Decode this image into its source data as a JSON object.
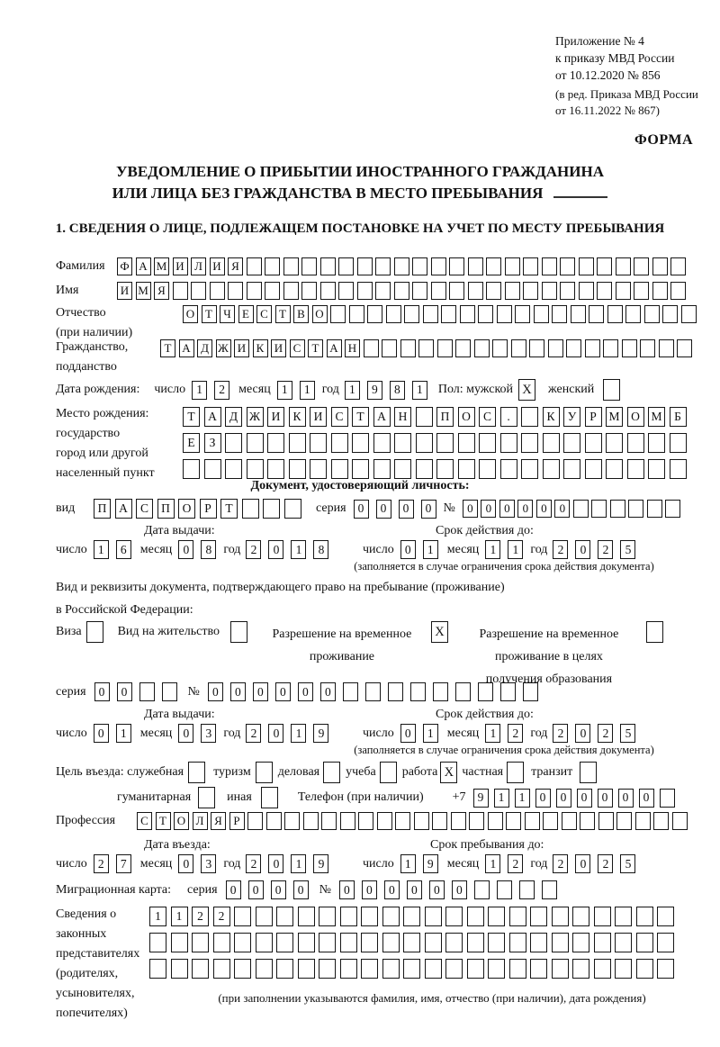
{
  "ref": {
    "l1": "Приложение № 4",
    "l2": "к приказу МВД России",
    "l3": "от 10.12.2020 № 856",
    "l4": "(в ред. Приказа МВД России",
    "l5": "от 16.11.2022 № 867)"
  },
  "forma": "ФОРМА",
  "title": {
    "line1": "УВЕДОМЛЕНИЕ О ПРИБЫТИИ ИНОСТРАННОГО ГРАЖДАНИНА",
    "line2": "ИЛИ ЛИЦА БЕЗ ГРАЖДАНСТВА В МЕСТО ПРЕБЫВАНИЯ"
  },
  "section1": "1. СВЕДЕНИЯ О ЛИЦЕ, ПОДЛЕЖАЩЕМ ПОСТАНОВКЕ НА УЧЕТ ПО МЕСТУ ПРЕБЫВАНИЯ",
  "labels": {
    "surname": "Фамилия",
    "given_name": "Имя",
    "patronymic1": "Отчество",
    "patronymic2": "(при наличии)",
    "citizenship1": "Гражданство,",
    "citizenship2": "подданство",
    "birth_date": "Дата рождения:",
    "day": "число",
    "month": "месяц",
    "year": "год",
    "sex_male": "Пол: мужской",
    "sex_female": "женский",
    "birthplace1": "Место рождения:",
    "birthplace2": "государство",
    "birthplace3": "город или другой",
    "birthplace4": "населенный пункт",
    "identity_doc": "Документ, удостоверяющий личность:",
    "doc_kind": "вид",
    "series": "серия",
    "num": "№",
    "issue_date": "Дата выдачи:",
    "valid_until": "Срок действия до:",
    "validity_note": "(заполняется в случае ограничения срока действия документа)",
    "residence1": "Вид и реквизиты документа, подтверждающего право на пребывание (проживание)",
    "residence2": "в Российской Федерации:",
    "visa": "Виза",
    "residence_permit": "Вид на жительство",
    "trp1": "Разрешение на временное",
    "trp2": "проживание",
    "trpe1": "Разрешение на временное",
    "trpe2": "проживание в целях",
    "trpe3": "получения образования",
    "purpose": "Цель въезда: служебная",
    "tourism": "туризм",
    "business": "деловая",
    "study": "учеба",
    "work": "работа",
    "private": "частная",
    "transit": "транзит",
    "humanitarian": "гуманитарная",
    "other": "иная",
    "phone": "Телефон (при наличии)",
    "phone_prefix": "+7",
    "profession": "Профессия",
    "entry_date": "Дата въезда:",
    "stay_until": "Срок пребывания до:",
    "migration_card": "Миграционная карта:",
    "reps1": "Сведения о",
    "reps2": "законных",
    "reps3": "представителях",
    "reps4": "(родителях,",
    "reps5": "усыновителях,",
    "reps6": "попечителях)",
    "reps_note": "(при заполнении указываются фамилия, имя, отчество (при наличии), дата рождения)"
  },
  "boxes": {
    "surname": {
      "value": "ФАМИЛИЯ",
      "count": 31
    },
    "given_name": {
      "value": "ИМЯ",
      "count": 31
    },
    "patronymic": {
      "value": "ОТЧЕСТВО",
      "count": 28
    },
    "citizenship": {
      "value": "ТАДЖИКИСТАН",
      "count": 29
    },
    "birth_day": {
      "value": "12",
      "count": 2
    },
    "birth_month": {
      "value": "11",
      "count": 2
    },
    "birth_year": {
      "value": "1981",
      "count": 4
    },
    "sex_male": {
      "value": "X",
      "count": 1
    },
    "sex_female": {
      "value": "",
      "count": 1
    },
    "birthplace_r1": {
      "value": "ТАДЖИКИСТАН ПОС. КУРМОМБ",
      "count": 24
    },
    "birthplace_r2": {
      "value": "ЕЗ",
      "count": 24
    },
    "birthplace_r3": {
      "value": "",
      "count": 24
    },
    "doc_kind": {
      "value": "ПАСПОРТ",
      "count": 10
    },
    "doc_series": {
      "value": "0000",
      "count": 4
    },
    "doc_number": {
      "value": "000000",
      "count": 12
    },
    "doc_issue_day": {
      "value": "16",
      "count": 2
    },
    "doc_issue_month": {
      "value": "08",
      "count": 2
    },
    "doc_issue_year": {
      "value": "2018",
      "count": 4
    },
    "doc_valid_day": {
      "value": "01",
      "count": 2
    },
    "doc_valid_month": {
      "value": "11",
      "count": 2
    },
    "doc_valid_year": {
      "value": "2025",
      "count": 4
    },
    "visa_check": {
      "value": "",
      "count": 1
    },
    "residence_permit_check": {
      "value": "",
      "count": 1
    },
    "temp_residence_check": {
      "value": "X",
      "count": 1
    },
    "temp_residence_edu_check": {
      "value": "",
      "count": 1
    },
    "permit_series": {
      "value": "00",
      "count": 4
    },
    "permit_number": {
      "value": "000000",
      "count": 15
    },
    "permit_issue_day": {
      "value": "01",
      "count": 2
    },
    "permit_issue_month": {
      "value": "03",
      "count": 2
    },
    "permit_issue_year": {
      "value": "2019",
      "count": 4
    },
    "permit_valid_day": {
      "value": "01",
      "count": 2
    },
    "permit_valid_month": {
      "value": "12",
      "count": 2
    },
    "permit_valid_year": {
      "value": "2025",
      "count": 4
    },
    "official_check": {
      "value": "",
      "count": 1
    },
    "tourism_check": {
      "value": "",
      "count": 1
    },
    "business_check": {
      "value": "",
      "count": 1
    },
    "study_check": {
      "value": "",
      "count": 1
    },
    "work_check": {
      "value": "X",
      "count": 1
    },
    "private_check": {
      "value": "",
      "count": 1
    },
    "transit_check": {
      "value": "",
      "count": 1
    },
    "humanitarian_check": {
      "value": "",
      "count": 1
    },
    "other_check": {
      "value": "",
      "count": 1
    },
    "phone": {
      "value": "911000000",
      "count": 10
    },
    "profession": {
      "value": "СТОЛЯР",
      "count": 30
    },
    "entry_day": {
      "value": "27",
      "count": 2
    },
    "entry_month": {
      "value": "03",
      "count": 2
    },
    "entry_year": {
      "value": "2019",
      "count": 4
    },
    "stay_day": {
      "value": "19",
      "count": 2
    },
    "stay_month": {
      "value": "12",
      "count": 2
    },
    "stay_year": {
      "value": "2025",
      "count": 4
    },
    "mig_series": {
      "value": "0000",
      "count": 4
    },
    "mig_number": {
      "value": "000000",
      "count": 10
    },
    "reps_r1": {
      "value": "1122",
      "count": 25
    },
    "reps_r2": {
      "value": "",
      "count": 25
    },
    "reps_r3": {
      "value": "",
      "count": 25
    }
  }
}
